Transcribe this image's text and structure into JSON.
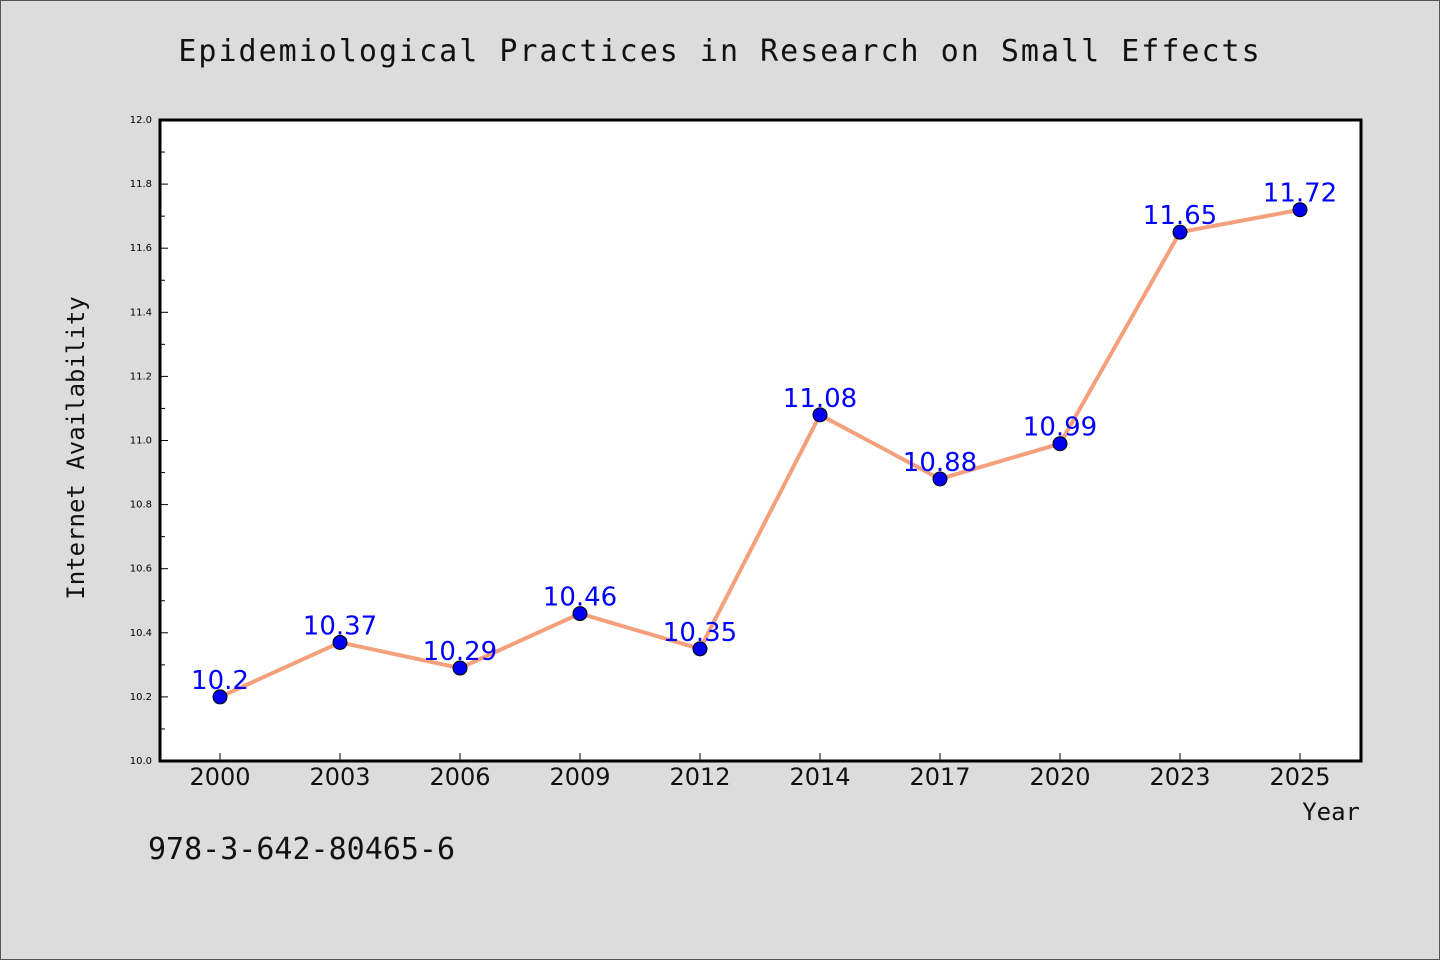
{
  "chart_data": {
    "type": "line",
    "title": "Epidemiological Practices in Research on Small Effects",
    "xlabel": "Year",
    "ylabel": "Internet Availability",
    "categories": [
      "2000",
      "2003",
      "2006",
      "2009",
      "2012",
      "2014",
      "2017",
      "2020",
      "2023",
      "2025"
    ],
    "values": [
      10.2,
      10.37,
      10.29,
      10.46,
      10.35,
      11.08,
      10.88,
      10.99,
      11.65,
      11.72
    ],
    "data_labels": [
      "10.2",
      "10.37",
      "10.29",
      "10.46",
      "10.35",
      "11.08",
      "10.88",
      "10.99",
      "11.65",
      "11.72"
    ],
    "ylim": [
      10.0,
      12.0
    ],
    "y_ticks": [
      "10.0",
      "10.2",
      "10.4",
      "10.6",
      "10.8",
      "11.0",
      "11.2",
      "11.4",
      "11.6",
      "11.8",
      "12.0"
    ],
    "grid": false,
    "line_color": "#f4a07c",
    "marker_color": "#0000ee",
    "label_color": "#0000ff"
  },
  "footer_code": "978-3-642-80465-6"
}
